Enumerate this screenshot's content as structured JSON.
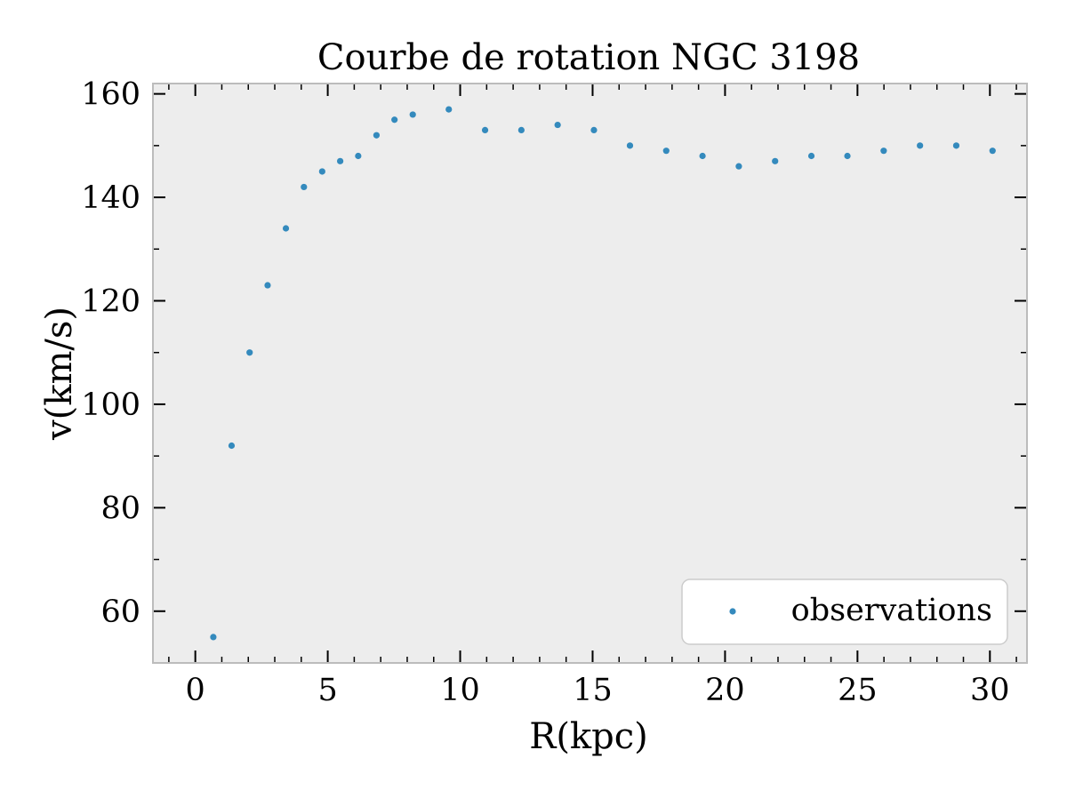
{
  "chart_data": {
    "type": "scatter",
    "title": "Courbe de rotation NGC 3198",
    "xlabel": "R(kpc)",
    "ylabel": "v(km/s)",
    "xlim": [
      -1.6,
      31.4
    ],
    "ylim": [
      50,
      162
    ],
    "xticks": [
      0,
      5,
      10,
      15,
      20,
      25,
      30
    ],
    "yticks": [
      60,
      80,
      100,
      120,
      140,
      160
    ],
    "grid": false,
    "legend_position": "lower right",
    "colors": {
      "background": "#ededed",
      "marker": "#348abd",
      "spine": "#bcbcbc"
    },
    "series": [
      {
        "name": "observations",
        "x": [
          0.68,
          1.37,
          2.05,
          2.73,
          3.42,
          4.1,
          4.79,
          5.47,
          6.15,
          6.84,
          7.52,
          8.21,
          9.57,
          10.94,
          12.31,
          13.68,
          15.05,
          16.41,
          17.78,
          19.15,
          20.52,
          21.89,
          23.26,
          24.62,
          25.99,
          27.36,
          28.73,
          30.1
        ],
        "y": [
          55,
          92,
          110,
          123,
          134,
          142,
          145,
          147,
          148,
          152,
          155,
          156,
          157,
          153,
          153,
          154,
          153,
          150,
          149,
          148,
          146,
          147,
          148,
          148,
          149,
          150,
          150,
          149
        ]
      }
    ]
  }
}
